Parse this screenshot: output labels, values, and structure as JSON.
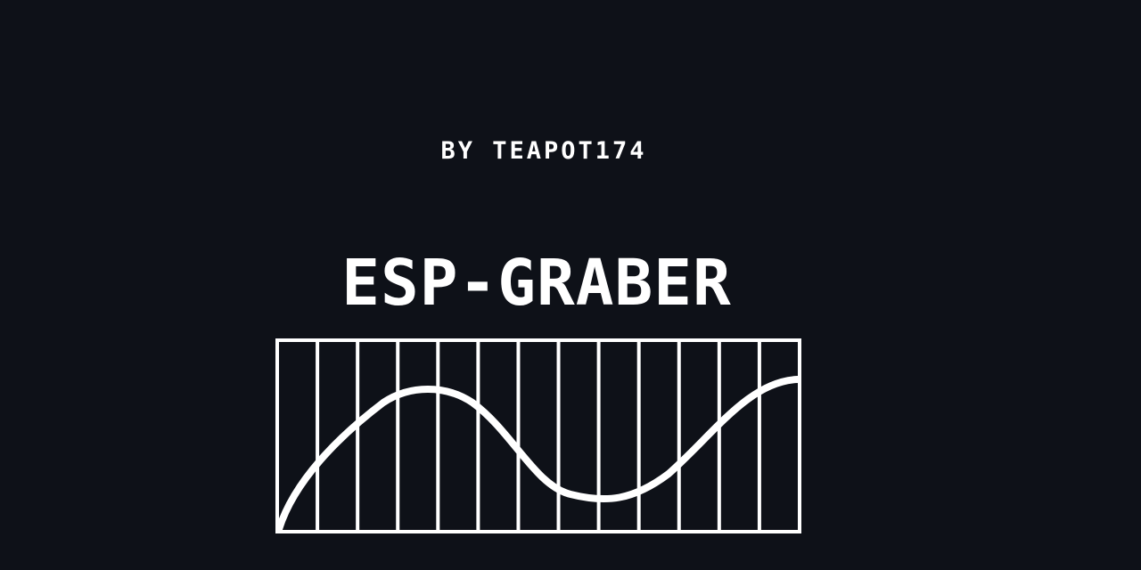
{
  "colors": {
    "background": "#0e1118",
    "foreground": "#ffffff"
  },
  "byline": "BY TEAPOT174",
  "title": "ESP-GRABER",
  "logo_graphic": {
    "description_icon": "waveform-grid-icon",
    "vertical_divisions": 13
  }
}
